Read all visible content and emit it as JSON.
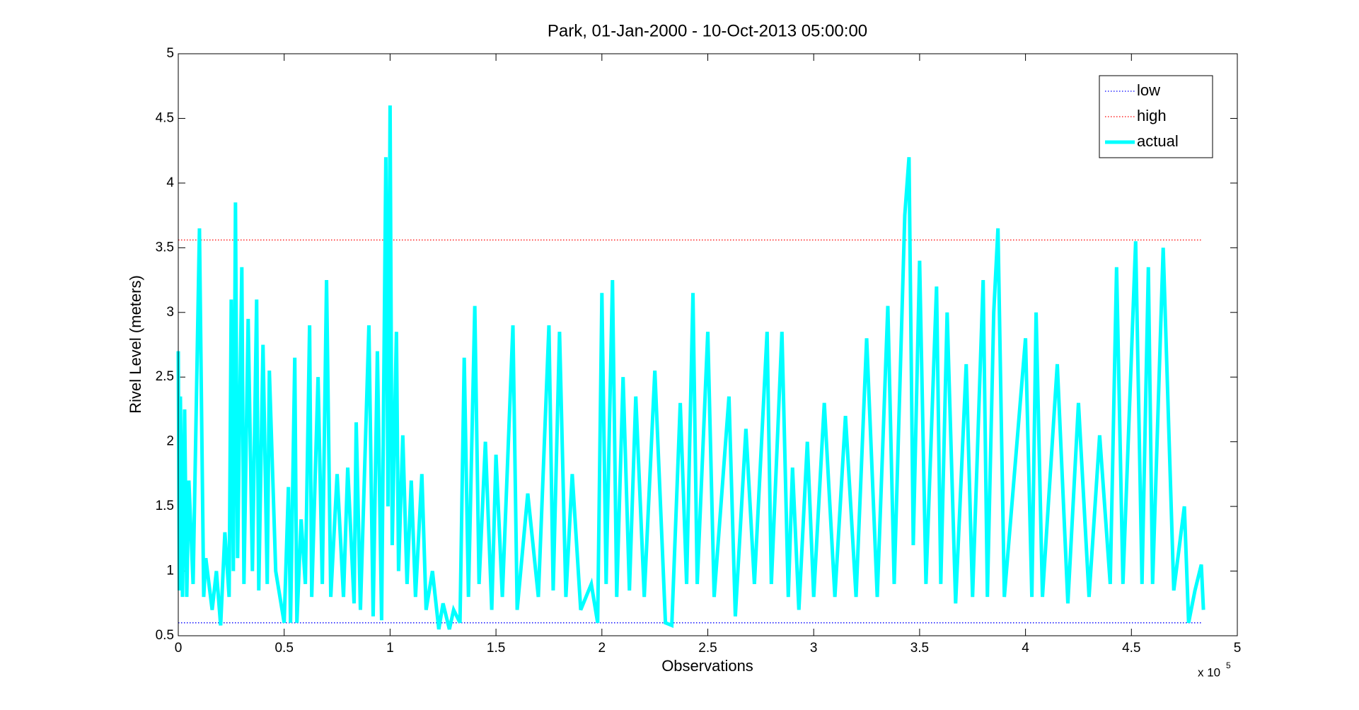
{
  "chart_data": {
    "type": "line",
    "title": "Park, 01-Jan-2000 - 10-Oct-2013 05:00:00",
    "x_label": "Observations",
    "y_label": "Rivel Level (meters)",
    "x_exponent_base": "x 10",
    "x_exponent": "5",
    "xlim": [
      0,
      5
    ],
    "xticks": [
      0,
      0.5,
      1,
      1.5,
      2,
      2.5,
      3,
      3.5,
      4,
      4.5,
      5
    ],
    "ylim": [
      0.5,
      5
    ],
    "yticks": [
      0.5,
      1,
      1.5,
      2,
      2.5,
      3,
      3.5,
      4,
      4.5,
      5
    ],
    "grid": false,
    "legend": "northeast",
    "series": [
      {
        "name": "low",
        "color": "#0000ff",
        "style": "dotted",
        "x": [
          0,
          4.83
        ],
        "values": [
          0.6,
          0.6
        ]
      },
      {
        "name": "high",
        "color": "#ff0000",
        "style": "dotted",
        "x": [
          0,
          4.83
        ],
        "values": [
          3.56,
          3.56
        ]
      },
      {
        "name": "actual",
        "color": "#00ffff",
        "style": "thick",
        "x": [
          0,
          0.005,
          0.01,
          0.02,
          0.03,
          0.04,
          0.05,
          0.07,
          0.1,
          0.12,
          0.13,
          0.16,
          0.18,
          0.2,
          0.22,
          0.24,
          0.25,
          0.26,
          0.27,
          0.28,
          0.3,
          0.31,
          0.33,
          0.35,
          0.37,
          0.38,
          0.4,
          0.42,
          0.43,
          0.46,
          0.48,
          0.5,
          0.52,
          0.53,
          0.55,
          0.56,
          0.58,
          0.6,
          0.62,
          0.63,
          0.66,
          0.68,
          0.7,
          0.72,
          0.75,
          0.78,
          0.8,
          0.83,
          0.84,
          0.86,
          0.9,
          0.92,
          0.94,
          0.96,
          0.98,
          0.99,
          1.0,
          1.01,
          1.03,
          1.04,
          1.06,
          1.08,
          1.1,
          1.12,
          1.15,
          1.17,
          1.2,
          1.23,
          1.25,
          1.28,
          1.3,
          1.33,
          1.35,
          1.37,
          1.4,
          1.42,
          1.45,
          1.48,
          1.5,
          1.53,
          1.58,
          1.6,
          1.65,
          1.7,
          1.75,
          1.77,
          1.8,
          1.83,
          1.86,
          1.9,
          1.95,
          1.98,
          2.0,
          2.02,
          2.05,
          2.07,
          2.1,
          2.13,
          2.16,
          2.2,
          2.25,
          2.3,
          2.33,
          2.37,
          2.4,
          2.43,
          2.45,
          2.5,
          2.53,
          2.6,
          2.63,
          2.68,
          2.72,
          2.78,
          2.8,
          2.85,
          2.88,
          2.9,
          2.93,
          2.97,
          3.0,
          3.05,
          3.1,
          3.15,
          3.2,
          3.25,
          3.3,
          3.35,
          3.38,
          3.43,
          3.45,
          3.47,
          3.5,
          3.53,
          3.58,
          3.6,
          3.63,
          3.67,
          3.72,
          3.75,
          3.8,
          3.82,
          3.85,
          3.87,
          3.9,
          4.0,
          4.03,
          4.05,
          4.08,
          4.15,
          4.2,
          4.25,
          4.3,
          4.35,
          4.4,
          4.43,
          4.46,
          4.52,
          4.55,
          4.58,
          4.6,
          4.65,
          4.7,
          4.75,
          4.77,
          4.8,
          4.83,
          4.84
        ],
        "values": [
          2.7,
          0.85,
          2.35,
          0.8,
          2.25,
          0.8,
          1.7,
          0.9,
          3.65,
          0.8,
          1.1,
          0.7,
          1.0,
          0.58,
          1.3,
          0.8,
          3.1,
          1.0,
          3.85,
          1.1,
          3.35,
          0.9,
          2.95,
          1.0,
          3.1,
          0.85,
          2.75,
          0.9,
          2.55,
          1.0,
          0.8,
          0.6,
          1.65,
          0.6,
          2.65,
          0.6,
          1.4,
          0.9,
          2.9,
          0.8,
          2.5,
          0.9,
          3.25,
          0.8,
          1.75,
          0.8,
          1.8,
          0.75,
          2.15,
          0.7,
          2.9,
          0.65,
          2.7,
          0.62,
          4.2,
          1.5,
          4.6,
          1.2,
          2.85,
          1.0,
          2.05,
          0.9,
          1.7,
          0.8,
          1.75,
          0.7,
          1.0,
          0.55,
          0.75,
          0.55,
          0.7,
          0.6,
          2.65,
          0.8,
          3.05,
          0.9,
          2.0,
          0.7,
          1.9,
          0.8,
          2.9,
          0.7,
          1.6,
          0.8,
          2.9,
          0.85,
          2.85,
          0.8,
          1.75,
          0.7,
          0.9,
          0.6,
          3.15,
          0.9,
          3.25,
          0.8,
          2.5,
          0.85,
          2.35,
          0.8,
          2.55,
          0.6,
          0.58,
          2.3,
          0.9,
          3.15,
          0.9,
          2.85,
          0.8,
          2.35,
          0.65,
          2.1,
          0.9,
          2.85,
          0.9,
          2.85,
          0.8,
          1.8,
          0.7,
          2.0,
          0.8,
          2.3,
          0.8,
          2.2,
          0.8,
          2.8,
          0.8,
          3.05,
          0.9,
          3.75,
          4.2,
          1.2,
          3.4,
          0.9,
          3.2,
          0.9,
          3.0,
          0.75,
          2.6,
          0.8,
          3.25,
          0.8,
          3.0,
          3.65,
          0.8,
          2.8,
          0.8,
          3.0,
          0.8,
          2.6,
          0.75,
          2.3,
          0.8,
          2.05,
          0.9,
          3.35,
          0.9,
          3.55,
          0.9,
          3.35,
          0.9,
          3.5,
          0.85,
          1.5,
          0.6,
          0.85,
          1.05,
          0.7
        ]
      }
    ]
  }
}
